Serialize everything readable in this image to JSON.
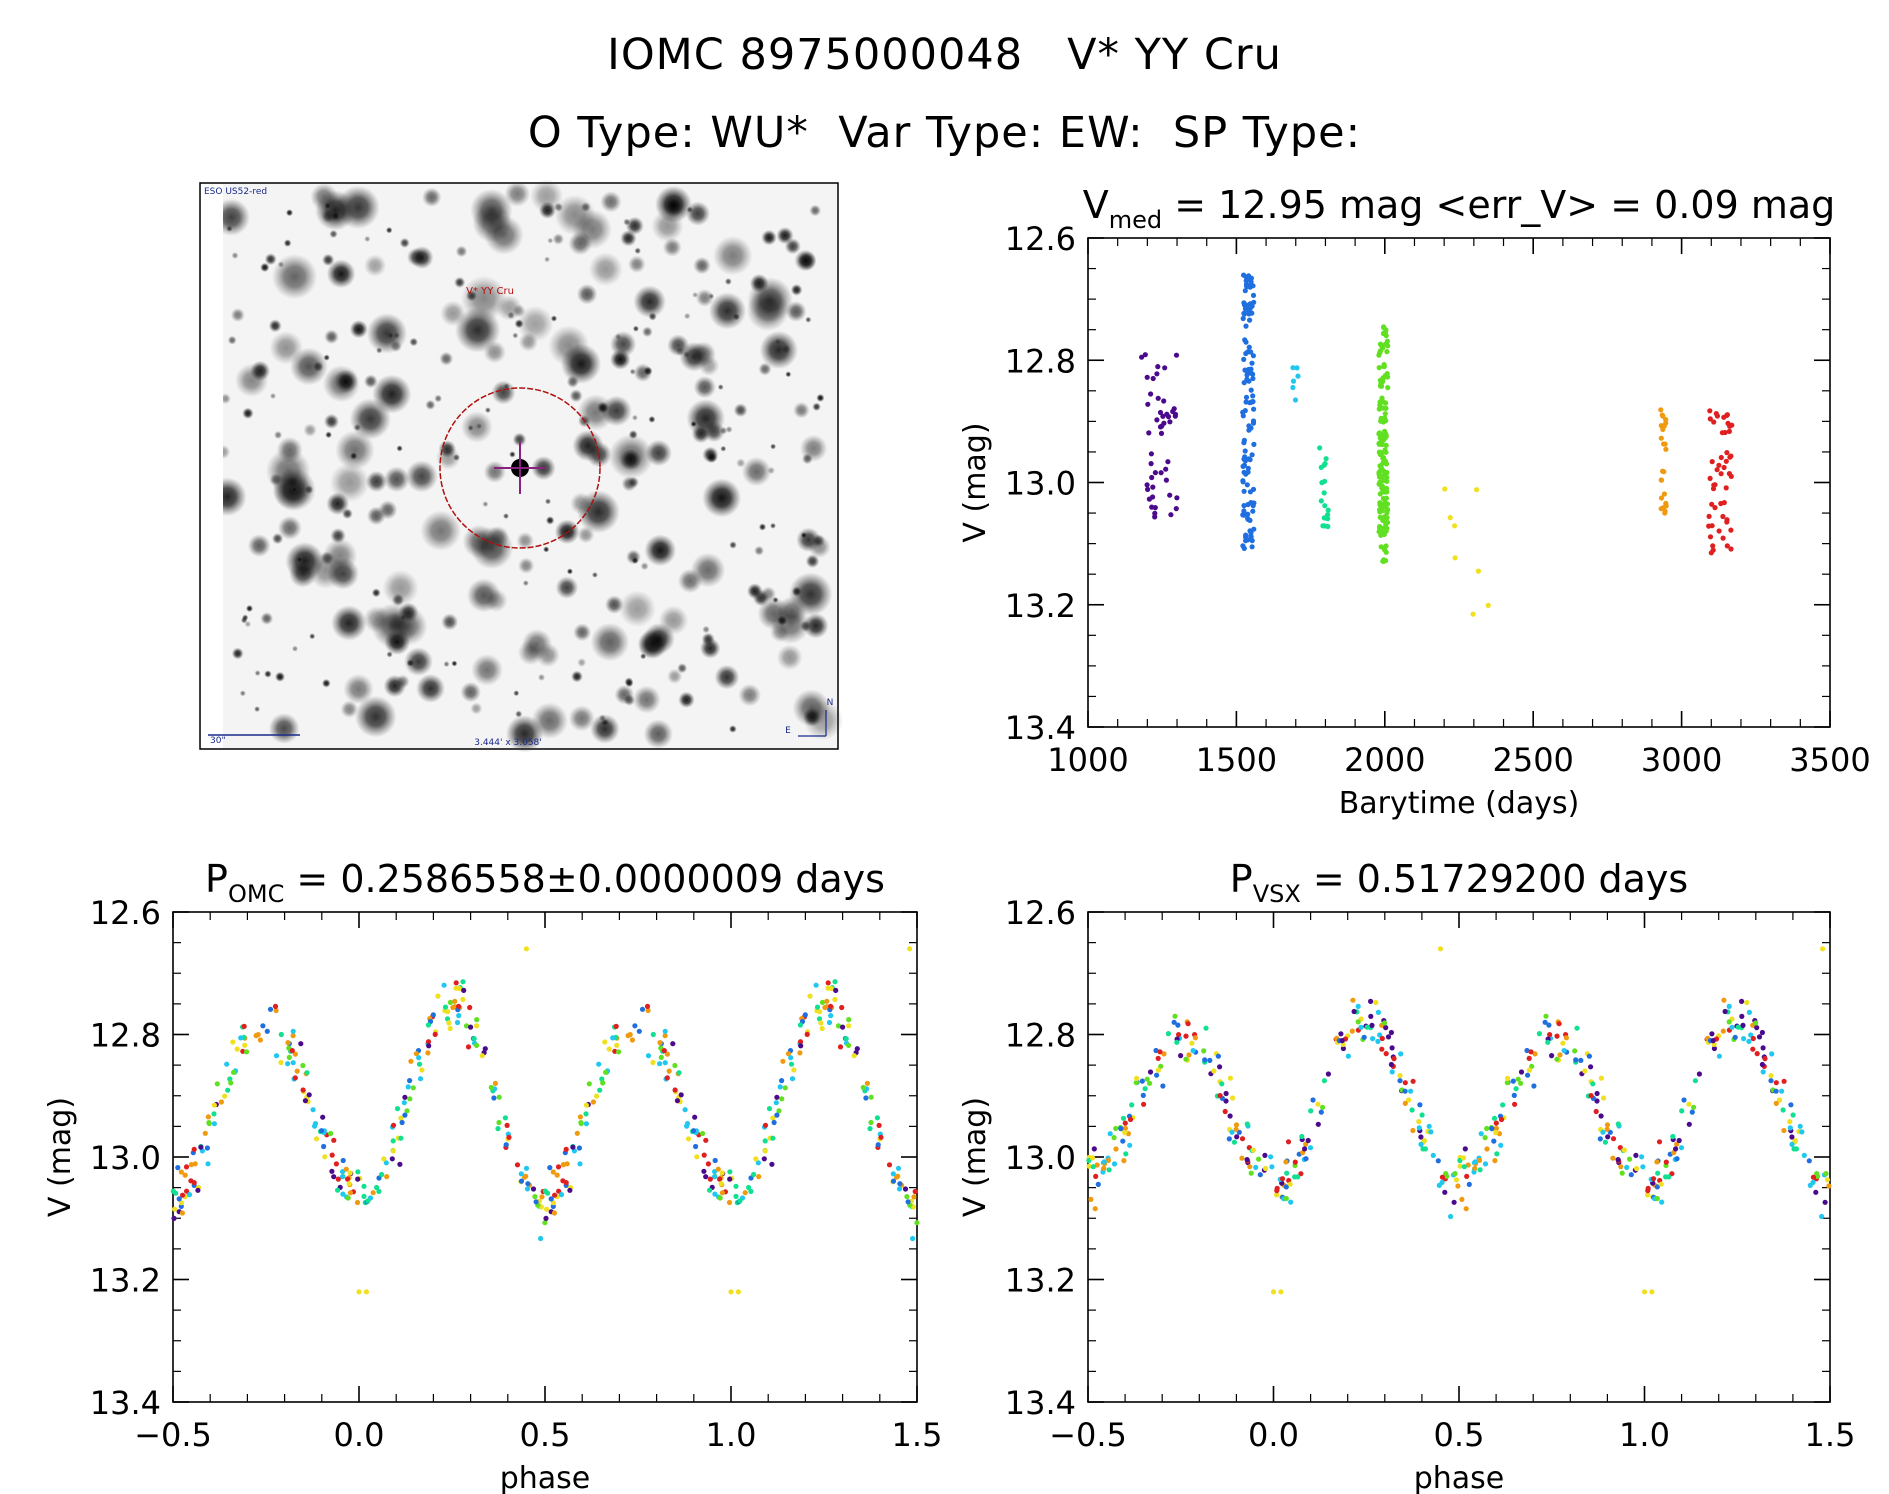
{
  "header": {
    "line1_id": "IOMC 8975000048",
    "line1_name": "V* YY Cru",
    "line2_otype": "O Type: WU*",
    "line2_vartype": "Var Type: EW:",
    "line2_sptype": "SP Type:"
  },
  "image": {
    "survey_label": "ESO US52-red",
    "target_label": "V* YY Cru",
    "scale_label": "30\"",
    "fov_label": "3.444' x 3.058'",
    "compass_n": "N",
    "compass_e": "E"
  },
  "chart_data": [
    {
      "type": "scatter",
      "id": "lightcurve",
      "title_prefix": "V",
      "title_sub": "med",
      "title_rest": " = 12.95 mag <err_V> = 0.09 mag",
      "xlabel": "Barytime (days)",
      "ylabel": "V (mag)",
      "xlim": [
        1000,
        3500
      ],
      "ylim": [
        12.6,
        13.4
      ],
      "y_inverted": true,
      "xticks": [
        1000,
        1500,
        2000,
        2500,
        3000,
        3500
      ],
      "xtick_labels": [
        "1000",
        "1500",
        "2000",
        "2500",
        "3000",
        "3500"
      ],
      "yticks": [
        12.6,
        12.8,
        13.0,
        13.2,
        13.4
      ],
      "ytick_labels": [
        "12.6",
        "12.8",
        "13.0",
        "13.2",
        "13.4"
      ],
      "groups": [
        {
          "color": "#4b0a8c",
          "x_range": [
            1180,
            1300
          ],
          "y_range": [
            12.79,
            13.08
          ],
          "n": 48
        },
        {
          "color": "#1f6fe0",
          "x_range": [
            1520,
            1560
          ],
          "y_range": [
            12.66,
            13.11
          ],
          "n": 120
        },
        {
          "color": "#20c8f0",
          "x_range": [
            1690,
            1720
          ],
          "y_range": [
            12.78,
            12.89
          ],
          "n": 6
        },
        {
          "color": "#10e090",
          "x_range": [
            1780,
            1810
          ],
          "y_range": [
            12.93,
            13.08
          ],
          "n": 18
        },
        {
          "color": "#60e020",
          "x_range": [
            1980,
            2010
          ],
          "y_range": [
            12.74,
            13.13
          ],
          "n": 150
        },
        {
          "color": "#f0e020",
          "x_range": [
            2190,
            2400
          ],
          "y_range": [
            13.01,
            13.22
          ],
          "n": 8
        },
        {
          "color": "#f09a10",
          "x_range": [
            2930,
            2950
          ],
          "y_range": [
            12.87,
            13.05
          ],
          "n": 25
        },
        {
          "color": "#e02020",
          "x_range": [
            3090,
            3170
          ],
          "y_range": [
            12.88,
            13.12
          ],
          "n": 50
        }
      ]
    },
    {
      "type": "scatter",
      "id": "phase_omc",
      "title_prefix": "P",
      "title_sub": "OMC",
      "title_rest": " = 0.2586558±0.0000009 days",
      "period_days": 0.2586558,
      "xlabel": "phase",
      "ylabel": "V (mag)",
      "xlim": [
        -0.5,
        1.5
      ],
      "ylim": [
        12.6,
        13.4
      ],
      "y_inverted": true,
      "xticks": [
        -0.5,
        0.0,
        0.5,
        1.0,
        1.5
      ],
      "xtick_labels": [
        "−0.5",
        "0.0",
        "0.5",
        "1.0",
        "1.5"
      ],
      "yticks": [
        12.6,
        12.8,
        13.0,
        13.2,
        13.4
      ],
      "ytick_labels": [
        "12.6",
        "12.8",
        "13.0",
        "13.2",
        "13.4"
      ],
      "curve": {
        "max_phase": -0.22,
        "max_mag": 12.75,
        "min_phase": 0.0,
        "min_mag": 13.08,
        "mean_mag": 12.95
      },
      "colors": [
        "#4b0a8c",
        "#1f6fe0",
        "#20c8f0",
        "#10e090",
        "#60e020",
        "#f0e020",
        "#f09a10",
        "#e02020"
      ]
    },
    {
      "type": "scatter",
      "id": "phase_vsx",
      "title_prefix": "P",
      "title_sub": "VSX",
      "title_rest": " = 0.51729200 days",
      "period_days": 0.517292,
      "xlabel": "phase",
      "ylabel": "V (mag)",
      "xlim": [
        -0.5,
        1.5
      ],
      "ylim": [
        12.6,
        13.4
      ],
      "y_inverted": true,
      "xticks": [
        -0.5,
        0.0,
        0.5,
        1.0,
        1.5
      ],
      "xtick_labels": [
        "−0.5",
        "0.0",
        "0.5",
        "1.0",
        "1.5"
      ],
      "yticks": [
        12.6,
        12.8,
        13.0,
        13.2,
        13.4
      ],
      "ytick_labels": [
        "12.6",
        "12.8",
        "13.0",
        "13.2",
        "13.4"
      ],
      "curve": {
        "max_phase": -0.27,
        "max_mag": 12.78,
        "min_phase": 0.0,
        "min_mag": 13.05,
        "mean_mag": 12.97
      },
      "colors": [
        "#4b0a8c",
        "#1f6fe0",
        "#20c8f0",
        "#10e090",
        "#60e020",
        "#f0e020",
        "#f09a10",
        "#e02020"
      ]
    }
  ]
}
